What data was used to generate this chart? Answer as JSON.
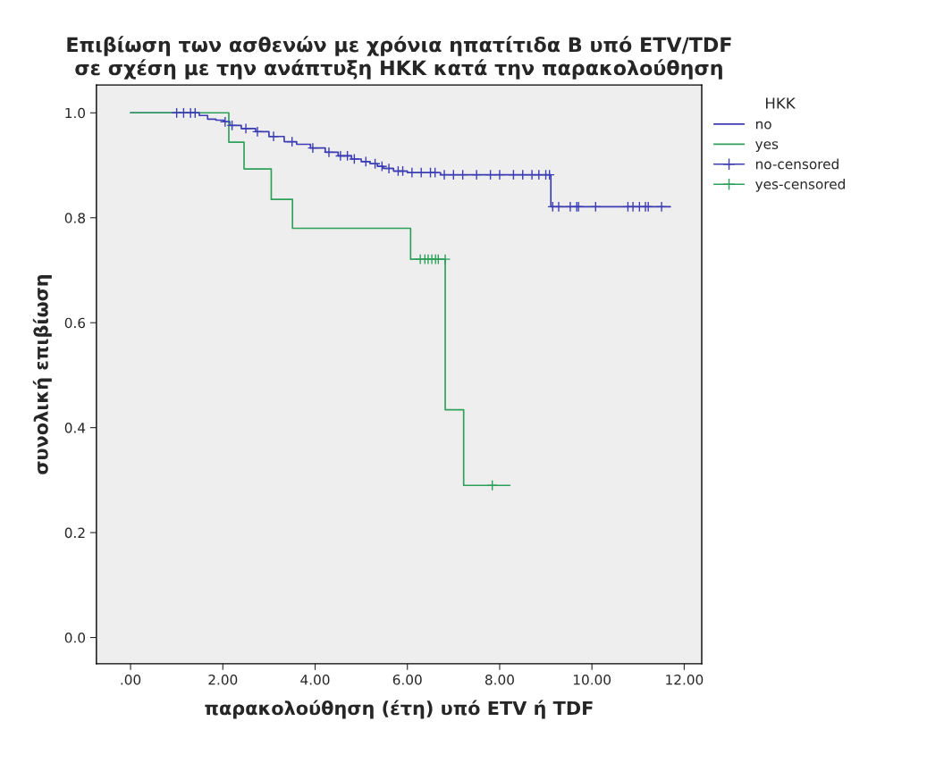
{
  "chart_data": {
    "type": "step",
    "title": "Επιβίωση των ασθενών με χρόνια ηπατίτιδα Β υπό ETV/TDF\nσε σχέση με την ανάπτυξη ΗΚΚ κατά την παρακολούθηση",
    "xlabel": "παρακολούθηση (έτη) υπό ETV ή TDF",
    "ylabel": "συνολική επιβίωση",
    "legend_title": "HKK",
    "legend": "top right",
    "grid": false,
    "xlim": [
      -0.74,
      12.38
    ],
    "ylim": [
      -0.05,
      1.053
    ],
    "xticks": [
      {
        "value": 0,
        "label": ".00"
      },
      {
        "value": 2,
        "label": "2.00"
      },
      {
        "value": 4,
        "label": "4.00"
      },
      {
        "value": 6,
        "label": "6.00"
      },
      {
        "value": 8,
        "label": "8.00"
      },
      {
        "value": 10,
        "label": "10.00"
      },
      {
        "value": 12,
        "label": "12.00"
      }
    ],
    "yticks": [
      {
        "value": 0,
        "label": "0.0"
      },
      {
        "value": 0.2,
        "label": "0.2"
      },
      {
        "value": 0.4,
        "label": "0.4"
      },
      {
        "value": 0.6,
        "label": "0.6"
      },
      {
        "value": 0.8,
        "label": "0.8"
      },
      {
        "value": 1,
        "label": "1.0"
      }
    ],
    "series": [
      {
        "name": "no",
        "color": "#3c3cb4",
        "marker": "none",
        "x": [
          0,
          1.49,
          1.67,
          1.85,
          2.02,
          2.15,
          2.4,
          2.71,
          3.0,
          3.33,
          3.6,
          3.9,
          4.22,
          4.5,
          4.79,
          5.0,
          5.19,
          5.35,
          5.48,
          5.7,
          6.0,
          6.72,
          9.11,
          11.7
        ],
        "values": [
          1.0,
          0.995,
          0.988,
          0.986,
          0.983,
          0.976,
          0.97,
          0.964,
          0.955,
          0.945,
          0.94,
          0.933,
          0.925,
          0.918,
          0.912,
          0.907,
          0.903,
          0.898,
          0.894,
          0.889,
          0.886,
          0.882,
          0.821,
          0.821
        ]
      },
      {
        "name": "yes",
        "color": "#2ea05a",
        "marker": "none",
        "x": [
          0,
          2.13,
          2.46,
          3.05,
          3.51,
          6.07,
          6.82,
          7.22,
          8.22
        ],
        "values": [
          1.0,
          0.944,
          0.893,
          0.835,
          0.78,
          0.721,
          0.434,
          0.29,
          0.29
        ]
      },
      {
        "name": "no-censored",
        "type": "scatter",
        "color": "#3c3cb4",
        "marker": "cross",
        "x": [
          1.0,
          1.15,
          1.3,
          1.4,
          2.05,
          2.2,
          2.5,
          2.75,
          3.1,
          3.5,
          3.95,
          4.3,
          4.55,
          4.7,
          4.85,
          5.1,
          5.3,
          5.45,
          5.6,
          5.8,
          5.9,
          6.1,
          6.3,
          6.5,
          6.6,
          6.8,
          7.0,
          7.2,
          7.5,
          7.8,
          8.0,
          8.3,
          8.5,
          8.7,
          8.85,
          9.0,
          9.08,
          9.15,
          9.28,
          9.53,
          9.67,
          9.71,
          10.08,
          10.78,
          10.89,
          11.03,
          11.16,
          11.22,
          11.51
        ],
        "values": [
          1.0,
          1.0,
          1.0,
          1.0,
          0.983,
          0.976,
          0.97,
          0.964,
          0.955,
          0.945,
          0.933,
          0.925,
          0.918,
          0.918,
          0.912,
          0.907,
          0.903,
          0.898,
          0.894,
          0.889,
          0.889,
          0.886,
          0.886,
          0.886,
          0.886,
          0.882,
          0.882,
          0.882,
          0.882,
          0.882,
          0.882,
          0.882,
          0.882,
          0.882,
          0.882,
          0.882,
          0.882,
          0.821,
          0.821,
          0.821,
          0.821,
          0.821,
          0.821,
          0.821,
          0.821,
          0.821,
          0.821,
          0.821,
          0.821
        ]
      },
      {
        "name": "yes-censored",
        "type": "scatter",
        "color": "#2ea05a",
        "marker": "cross",
        "x": [
          6.28,
          6.38,
          6.45,
          6.53,
          6.61,
          6.67,
          6.82,
          7.84
        ],
        "values": [
          0.721,
          0.721,
          0.721,
          0.721,
          0.721,
          0.721,
          0.721,
          0.29
        ]
      }
    ]
  }
}
